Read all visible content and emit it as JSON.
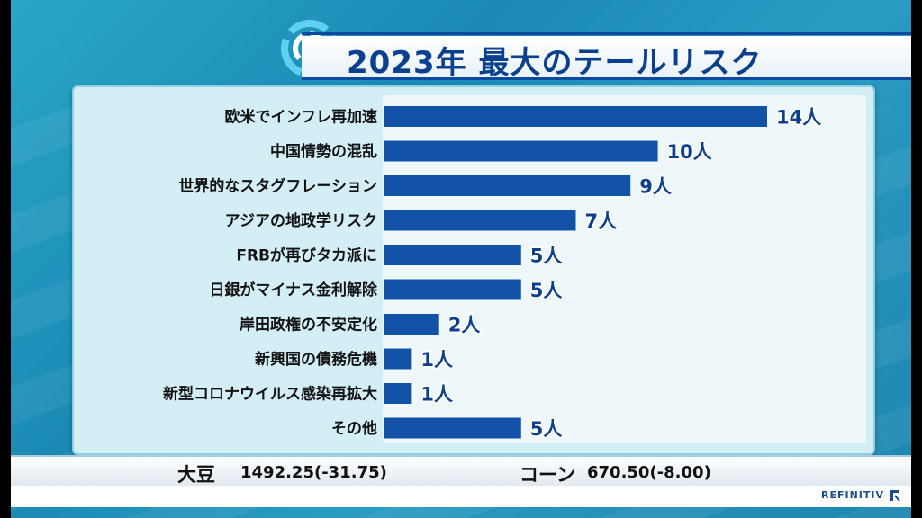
{
  "header": {
    "title": "2023年 最大のテールリスク"
  },
  "chart_data": {
    "type": "bar",
    "orientation": "horizontal",
    "title": "2023年 最大のテールリスク",
    "categories": [
      "欧米でインフレ再加速",
      "中国情勢の混乱",
      "世界的なスタグフレーション",
      "アジアの地政学リスク",
      "FRBが再びタカ派に",
      "日銀がマイナス金利解除",
      "岸田政権の不安定化",
      "新興国の債務危機",
      "新型コロナウイルス感染再拡大",
      "その他"
    ],
    "values": [
      14,
      10,
      9,
      7,
      5,
      5,
      2,
      1,
      1,
      5
    ],
    "value_labels": [
      "14人",
      "10人",
      "9人",
      "7人",
      "5人",
      "5人",
      "2人",
      "1人",
      "1人",
      "5人"
    ],
    "xlim": [
      0,
      14
    ],
    "grid": false,
    "bar_color": "#1253a8"
  },
  "ticker": {
    "item1_name": "大豆",
    "item1_value": "1492.25(-31.75)",
    "item2_name": "コーン",
    "item2_value": "670.50(-8.00)"
  },
  "footer": {
    "brand": "REFINITIV"
  },
  "colors": {
    "accent": "#0b3f8f",
    "background": "#1a8ab5",
    "bar": "#1253a8"
  }
}
